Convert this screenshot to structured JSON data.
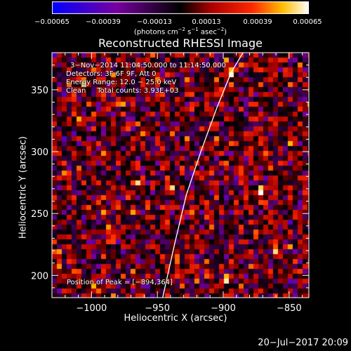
{
  "chart_data": {
    "type": "heatmap",
    "title": "Reconstructed RHESSI Image",
    "xlabel": "Heliocentric X (arcsec)",
    "ylabel": "Heliocentric Y (arcsec)",
    "xlim": [
      -1030,
      -835
    ],
    "ylim": [
      182,
      380
    ],
    "x_ticks": [
      "−1000",
      "−950",
      "−900",
      "−850"
    ],
    "x_tick_values": [
      -1000,
      -950,
      -900,
      -850
    ],
    "y_ticks": [
      "200",
      "250",
      "300",
      "350"
    ],
    "y_tick_values": [
      200,
      250,
      300,
      350
    ],
    "colorbar": {
      "tick_labels": [
        "−0.00065",
        "−0.00039",
        "−0.00013",
        "0.00013",
        "0.00039",
        "0.00065"
      ],
      "tick_values": [
        -0.00065,
        -0.00039,
        -0.00013,
        0.00013,
        0.00039,
        0.00065
      ],
      "range": [
        -0.00065,
        0.00065
      ],
      "units": {
        "prefix": "(photons cm",
        "exp1": "−2",
        "mid1": " s",
        "exp2": "−1",
        "mid2": " asec",
        "exp3": "−2",
        "suffix": ")"
      },
      "colormap": "red-temperature"
    },
    "info": {
      "time_range": "3−Nov−2014 11:04:50.000 to 11:14:50.000",
      "detectors": "Detectors: 3F 6F 9F, Att 0",
      "energy": "Energy Range: 12.0 − 25.0 keV",
      "clean": "Clean     Total counts: 3.93E+03"
    },
    "peak_label": "Position of Peak = [−894,364]",
    "peak": {
      "x": -894,
      "y": 364
    },
    "limb_curve": [
      {
        "x": -946,
        "y": 182
      },
      {
        "x": -937,
        "y": 225
      },
      {
        "x": -928,
        "y": 265
      },
      {
        "x": -917,
        "y": 300
      },
      {
        "x": -905,
        "y": 335
      },
      {
        "x": -894,
        "y": 364
      },
      {
        "x": -885,
        "y": 380
      }
    ],
    "hot_spots": [
      {
        "x": -894,
        "y": 364,
        "v": 1.0
      },
      {
        "x": -873,
        "y": 266,
        "v": 0.75
      },
      {
        "x": -940,
        "y": 271,
        "v": 0.7
      },
      {
        "x": -1013,
        "y": 325,
        "v": 0.65
      },
      {
        "x": -1007,
        "y": 355,
        "v": 0.6
      },
      {
        "x": -965,
        "y": 272,
        "v": 0.55
      },
      {
        "x": -1000,
        "y": 190,
        "v": 0.6
      },
      {
        "x": -897,
        "y": 196,
        "v": 0.65
      },
      {
        "x": -938,
        "y": 214,
        "v": 0.5
      },
      {
        "x": -920,
        "y": 229,
        "v": 0.5
      },
      {
        "x": -849,
        "y": 311,
        "v": 0.45
      },
      {
        "x": -977,
        "y": 339,
        "v": 0.45
      },
      {
        "x": -1020,
        "y": 277,
        "v": 0.45
      },
      {
        "x": -985,
        "y": 232,
        "v": 0.4
      },
      {
        "x": -960,
        "y": 320,
        "v": 0.45
      },
      {
        "x": -860,
        "y": 220,
        "v": 0.4
      },
      {
        "x": -910,
        "y": 305,
        "v": 0.4
      },
      {
        "x": -1025,
        "y": 215,
        "v": 0.4
      }
    ]
  },
  "datestamp": "20−Jul−2017 20:09"
}
